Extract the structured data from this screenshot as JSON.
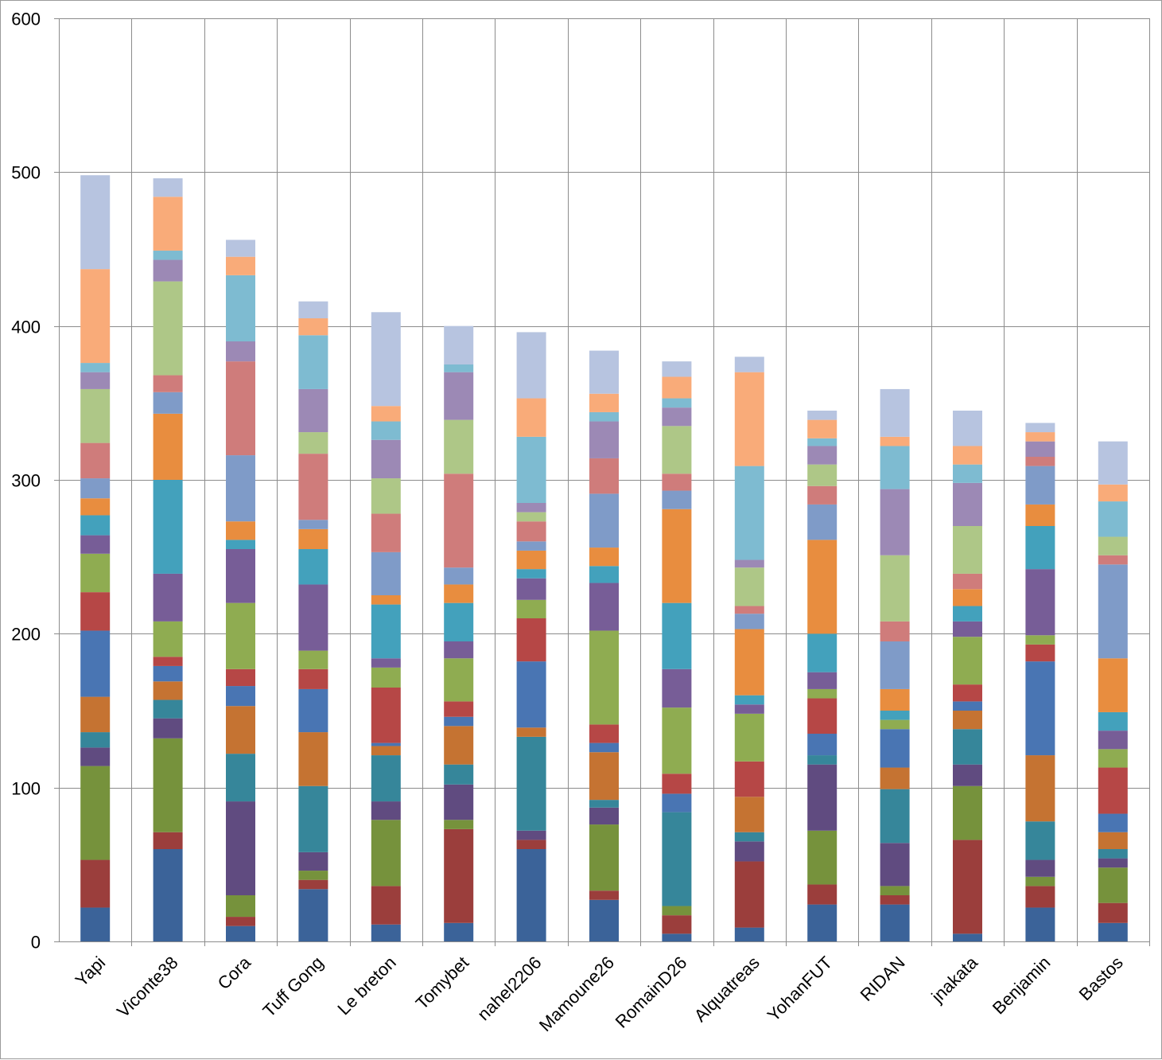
{
  "chart_data": {
    "type": "bar",
    "stacked": true,
    "title": "",
    "xlabel": "",
    "ylabel": "",
    "ylim": [
      0,
      600
    ],
    "yticks": [
      0,
      100,
      200,
      300,
      400,
      500,
      600
    ],
    "grid": true,
    "legend": "none",
    "categories": [
      "Yapi",
      "Viconte38",
      "Cora",
      "Tuff Gong",
      "Le breton",
      "Tomybet",
      "nahel2206",
      "Mamoune26",
      "RomainD26",
      "Alquatreas",
      "YohanFUT",
      "RIDAN",
      "jnakata",
      "Benjamin",
      "Bastos"
    ],
    "colors": [
      "#3b6399",
      "#9b3e3c",
      "#76923c",
      "#604b80",
      "#36869a",
      "#c57332",
      "#4975b3",
      "#b64746",
      "#8fac51",
      "#775d97",
      "#43a1bc",
      "#e88d3f",
      "#7f9bc8",
      "#cf7c7b",
      "#aec787",
      "#9c89b5",
      "#7ebbd1",
      "#f9ab79",
      "#b7c4e0"
    ],
    "series": [
      {
        "values": [
          22,
          60,
          10,
          34,
          11,
          12,
          60,
          27,
          5,
          9,
          24,
          24,
          5,
          22,
          12
        ]
      },
      {
        "values": [
          31,
          11,
          6,
          6,
          25,
          61,
          6,
          6,
          12,
          43,
          13,
          6,
          61,
          14,
          13
        ]
      },
      {
        "values": [
          61,
          61,
          14,
          6,
          43,
          6,
          0,
          43,
          6,
          0,
          35,
          6,
          35,
          6,
          23
        ]
      },
      {
        "values": [
          12,
          13,
          61,
          12,
          12,
          23,
          6,
          11,
          0,
          13,
          43,
          28,
          14,
          11,
          6
        ]
      },
      {
        "values": [
          10,
          12,
          31,
          43,
          30,
          13,
          61,
          5,
          61,
          6,
          6,
          35,
          23,
          25,
          6
        ]
      },
      {
        "values": [
          23,
          12,
          31,
          35,
          6,
          25,
          6,
          31,
          0,
          23,
          0,
          14,
          12,
          43,
          11
        ]
      },
      {
        "values": [
          43,
          10,
          13,
          28,
          2,
          6,
          43,
          6,
          12,
          0,
          14,
          25,
          6,
          61,
          12
        ]
      },
      {
        "values": [
          25,
          6,
          11,
          13,
          36,
          10,
          28,
          12,
          13,
          23,
          23,
          0,
          11,
          11,
          30
        ]
      },
      {
        "values": [
          25,
          23,
          43,
          12,
          13,
          28,
          12,
          61,
          43,
          31,
          6,
          6,
          31,
          6,
          12
        ]
      },
      {
        "values": [
          12,
          31,
          35,
          43,
          6,
          11,
          14,
          31,
          25,
          6,
          11,
          0,
          10,
          43,
          12
        ]
      },
      {
        "values": [
          13,
          61,
          6,
          23,
          35,
          25,
          6,
          11,
          43,
          6,
          25,
          6,
          10,
          28,
          12
        ]
      },
      {
        "values": [
          11,
          43,
          12,
          13,
          6,
          12,
          12,
          12,
          61,
          43,
          61,
          14,
          11,
          14,
          35
        ]
      },
      {
        "values": [
          13,
          14,
          43,
          6,
          28,
          11,
          6,
          35,
          12,
          10,
          23,
          31,
          0,
          25,
          61
        ]
      },
      {
        "values": [
          23,
          11,
          61,
          43,
          25,
          61,
          13,
          23,
          11,
          5,
          12,
          13,
          10,
          6,
          6
        ]
      },
      {
        "values": [
          35,
          61,
          0,
          14,
          23,
          35,
          6,
          0,
          31,
          25,
          14,
          43,
          31,
          0,
          12
        ]
      },
      {
        "values": [
          11,
          14,
          13,
          28,
          25,
          31,
          6,
          24,
          12,
          5,
          12,
          43,
          28,
          10,
          0
        ]
      },
      {
        "values": [
          6,
          6,
          43,
          35,
          12,
          5,
          43,
          6,
          6,
          61,
          5,
          28,
          12,
          0,
          23
        ]
      },
      {
        "values": [
          61,
          35,
          12,
          11,
          10,
          0,
          25,
          12,
          14,
          61,
          12,
          6,
          12,
          6,
          11
        ]
      },
      {
        "values": [
          61,
          12,
          11,
          11,
          61,
          25,
          43,
          28,
          10,
          10,
          6,
          31,
          23,
          6,
          28
        ]
      }
    ]
  }
}
